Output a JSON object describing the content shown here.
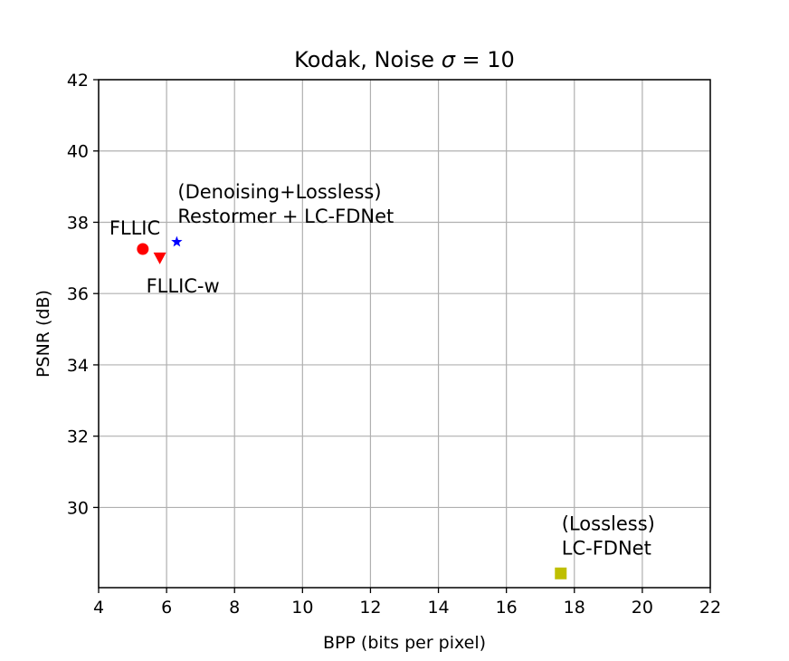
{
  "chart_data": {
    "type": "scatter",
    "title": "Kodak, Noise σ = 10",
    "xlabel": "BPP (bits per pixel)",
    "ylabel": "PSNR (dB)",
    "xlim": [
      4,
      22
    ],
    "ylim": [
      27.75,
      42
    ],
    "xticks": [
      4,
      6,
      8,
      10,
      12,
      14,
      16,
      18,
      20,
      22
    ],
    "yticks": [
      30,
      32,
      34,
      36,
      38,
      40,
      42
    ],
    "grid": true,
    "points": [
      {
        "label": "FLLIC",
        "x": 5.3,
        "y": 37.25,
        "marker": "circle",
        "color": "#ff0000"
      },
      {
        "label": "FLLIC-w",
        "x": 5.8,
        "y": 37.0,
        "marker": "triangle-down",
        "color": "#ff0000"
      },
      {
        "label": "(Denoising+Lossless)\nRestormer + LC-FDNet",
        "x": 6.3,
        "y": 37.45,
        "marker": "star",
        "color": "#0000ff"
      },
      {
        "label": "(Lossless)\nLC-FDNet",
        "x": 17.6,
        "y": 28.15,
        "marker": "square",
        "color": "#bfbf00"
      }
    ]
  }
}
